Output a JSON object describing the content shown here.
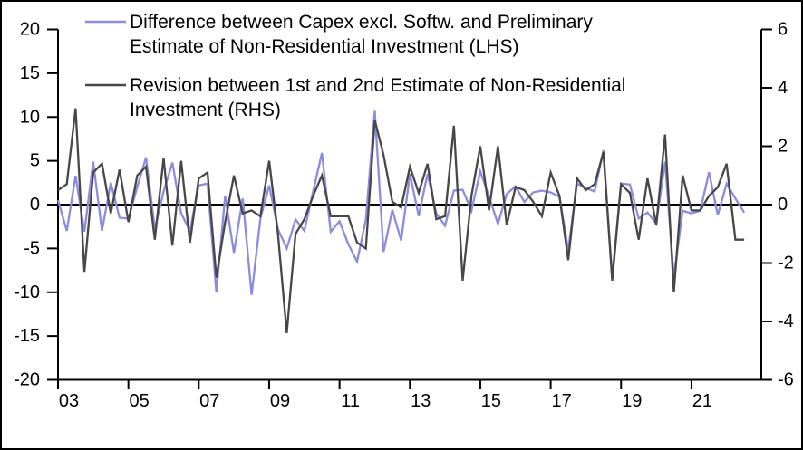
{
  "chart_data": {
    "type": "line",
    "title": "",
    "x_frequency": "quarterly",
    "x_start": "2003Q1",
    "x_end": "2022Q3",
    "x_tick_labels": [
      "03",
      "05",
      "07",
      "09",
      "11",
      "13",
      "15",
      "17",
      "19",
      "21"
    ],
    "left_axis": {
      "label": "",
      "min": -20,
      "max": 20,
      "ticks": [
        20,
        15,
        10,
        5,
        0,
        -5,
        -10,
        -15,
        -20
      ]
    },
    "right_axis": {
      "label": "",
      "min": -6,
      "max": 6,
      "ticks": [
        6,
        4,
        2,
        0,
        -2,
        -4,
        -6
      ]
    },
    "grid": false,
    "zero_line": true,
    "legend_position": "top-left",
    "series": [
      {
        "name": "Difference between Capex excl. Softw. and Preliminary Estimate of Non-Residential Investment (LHS)",
        "label_lines": [
          "Difference between Capex excl. Softw. and Preliminary",
          "Estimate of Non-Residential Investment (LHS)"
        ],
        "axis": "LHS",
        "color": "#8b8be0",
        "values": [
          0.5,
          -3,
          3.3,
          -3.1,
          4.9,
          -3,
          2.5,
          -1.5,
          -1.6,
          2,
          5.4,
          -2.8,
          1.5,
          4.8,
          -1,
          -3,
          2.2,
          2.4,
          -10,
          1,
          -5.5,
          0.7,
          -10.3,
          -1.6,
          2.2,
          -2.8,
          -5,
          -1.7,
          -3,
          1.5,
          5.9,
          -3.1,
          -1.9,
          -4.5,
          -6.5,
          -1.7,
          10.7,
          -5.4,
          -0.6,
          -4.1,
          3.5,
          -1.3,
          3.5,
          -1,
          -2.4,
          1.6,
          1.7,
          -0.7,
          3.8,
          0.9,
          -2.2,
          1.2,
          2.1,
          0.3,
          1.4,
          1.6,
          1.4,
          0.9,
          -5.2,
          2.4,
          1.9,
          1.5,
          6.2,
          -8.3,
          2.4,
          2.3,
          -1.6,
          -0.9,
          -2.2,
          4.9,
          -8.3,
          -0.7,
          -1,
          -0.7,
          3.7,
          -1.2,
          2.4,
          0.7,
          -0.9
        ]
      },
      {
        "name": "Revision between 1st and 2nd Estimate of Non-Residential Investment (RHS)",
        "label_lines": [
          "Revision between 1st and 2nd Estimate of Non-Residential",
          "Investment (RHS)"
        ],
        "axis": "RHS",
        "color": "#474747",
        "values": [
          0.5,
          0.7,
          3.3,
          -2.3,
          1.1,
          1.4,
          -0.3,
          1.2,
          -0.6,
          1,
          1.3,
          -1.2,
          1.6,
          -1.4,
          1.5,
          -1.3,
          0.9,
          1.1,
          -2.5,
          -0.6,
          1,
          -0.3,
          -0.2,
          -0.4,
          1.5,
          -1,
          -4.4,
          -1,
          -0.5,
          0.3,
          1,
          -0.4,
          -0.4,
          -0.4,
          -1.3,
          -1.5,
          2.9,
          1.7,
          0.1,
          -0.1,
          1.3,
          0.4,
          1.4,
          -0.5,
          -0.4,
          2.7,
          -2.6,
          0.3,
          2,
          -0.2,
          2,
          -0.7,
          0.6,
          0.5,
          0.1,
          -0.4,
          1.1,
          0.3,
          -1.9,
          0.9,
          0.5,
          0.7,
          1.8,
          -2.6,
          0.7,
          0.4,
          -1.2,
          0.9,
          -0.7,
          2.4,
          -3,
          1,
          -0.2,
          -0.2,
          0.3,
          0.6,
          1.4,
          -1.2,
          -1.2
        ]
      }
    ]
  }
}
